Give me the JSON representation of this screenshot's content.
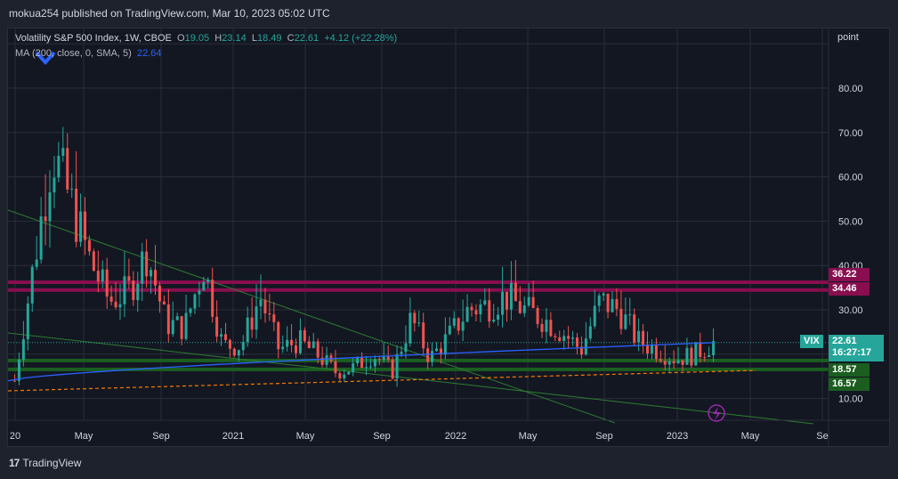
{
  "header": {
    "publisher_text": "mokua254 published on TradingView.com, Mar 10, 2023 05:02 UTC"
  },
  "legend": {
    "symbol": "Volatility S&P 500 Index, 1W, CBOE",
    "o_label": "O",
    "o_value": "19.05",
    "h_label": "H",
    "h_value": "23.14",
    "l_label": "L",
    "l_value": "18.49",
    "c_label": "C",
    "c_value": "22.61",
    "change": "+4.12 (+22.28%)",
    "ma_label": "MA (200, close, 0, SMA, 5)",
    "ma_value": "22.64"
  },
  "footer": {
    "brand": "TradingView",
    "brand_mark": "17"
  },
  "price_axis": {
    "unit": "point",
    "ticks": [
      "80.00",
      "70.00",
      "60.00",
      "50.00",
      "40.00",
      "30.00",
      "10.00"
    ]
  },
  "time_axis": {
    "ticks": [
      "20",
      "May",
      "Sep",
      "2021",
      "May",
      "Sep",
      "2022",
      "May",
      "Sep",
      "2023",
      "May",
      "Se"
    ]
  },
  "price_tags": {
    "symbol_tag": "VIX",
    "last_price": "22.61",
    "countdown": "16:27:17",
    "resistance_upper": "36.22",
    "resistance_lower": "34.46",
    "support_upper": "18.57",
    "support_lower": "16.57"
  },
  "colors": {
    "up": "#26a69a",
    "down": "#ef5350",
    "ma": "#2962ff",
    "resistance": "#880e4f",
    "support": "#1b5e20",
    "trendline": "#2e7d32",
    "dashed": "#f57c00",
    "grid": "#2a2e39"
  },
  "chart_data": {
    "type": "candlestick",
    "title": "Volatility S&P 500 Index, 1W, CBOE",
    "ylabel": "point",
    "y_ticks": [
      10,
      30,
      40,
      50,
      60,
      70,
      80
    ],
    "last_close": 22.61,
    "ma_200_last": 22.64,
    "horizontal_zones": [
      {
        "name": "resistance",
        "values": [
          34.46,
          36.22
        ]
      },
      {
        "name": "support",
        "values": [
          16.57,
          18.57
        ]
      }
    ],
    "series": [
      {
        "name": "weekly_ohlc_approx",
        "x": [
          "2020-02",
          "2020-03",
          "2020-03",
          "2020-04",
          "2020-04",
          "2020-05",
          "2020-06",
          "2020-06",
          "2020-07",
          "2020-09",
          "2020-10",
          "2020-11",
          "2020-12",
          "2021-01",
          "2021-02",
          "2021-03",
          "2021-05",
          "2021-06",
          "2021-08",
          "2021-09",
          "2021-10",
          "2021-11",
          "2021-12",
          "2022-01",
          "2022-02",
          "2022-03",
          "2022-04",
          "2022-05",
          "2022-06",
          "2022-07",
          "2022-08",
          "2022-09",
          "2022-10",
          "2022-11",
          "2022-12",
          "2023-01",
          "2023-02",
          "2023-03"
        ],
        "close": [
          14,
          40,
          66,
          54,
          41,
          32,
          34,
          43,
          27,
          26,
          40,
          22,
          22,
          33,
          21,
          23,
          20,
          16,
          17,
          20,
          16,
          28,
          19,
          24,
          30,
          31,
          33,
          30,
          28,
          25,
          21,
          32,
          30,
          23,
          21,
          19,
          20,
          22.61
        ]
      }
    ]
  }
}
